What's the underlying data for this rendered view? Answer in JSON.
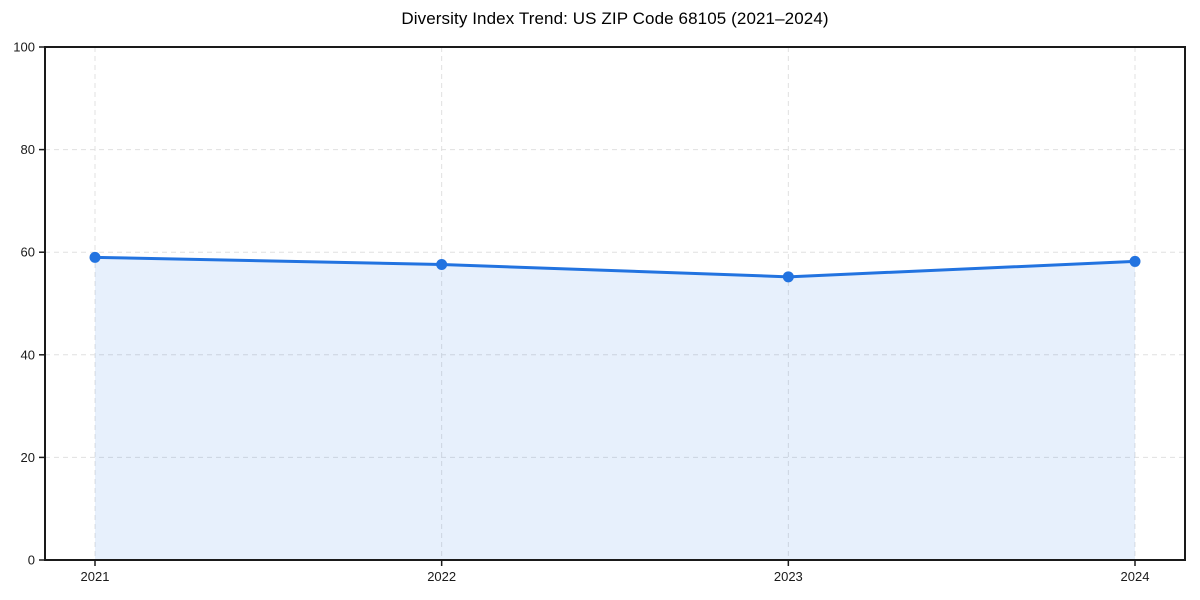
{
  "page": {
    "background": "#ffffff"
  },
  "chart_data": {
    "type": "area",
    "title": "Diversity Index Trend: US ZIP Code 68105 (2021–2024)",
    "categories": [
      "2021",
      "2022",
      "2023",
      "2024"
    ],
    "series": [
      {
        "name": "Diversity Index",
        "values": [
          59.0,
          57.6,
          55.2,
          58.2
        ]
      }
    ],
    "xlabel": "",
    "ylabel": "",
    "ylim": [
      0,
      100
    ],
    "yticks": [
      0,
      20,
      40,
      60,
      80,
      100
    ],
    "grid": true,
    "grid_line_style": "dashed",
    "legend_position": "none",
    "colors": {
      "line": "#2273e0",
      "marker": "#2273e0",
      "fill": "#2273e0",
      "fill_opacity": 0.11,
      "grid": "#e0e0e0",
      "axis": "#1a1a1a",
      "tick_label": "#1a1a1a",
      "title": "#000000",
      "background": "#ffffff"
    }
  }
}
